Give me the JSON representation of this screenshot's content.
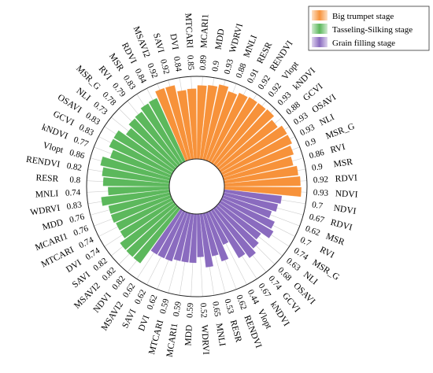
{
  "chart_data": {
    "type": "bar",
    "subtype": "radial-bar",
    "title": "",
    "xlabel": "",
    "ylabel": "",
    "ylim": [
      0,
      1
    ],
    "legend_position": "top-right",
    "series": [
      {
        "name": "Big trumpet stage",
        "color": "#f7923a",
        "categories": [
          "NDVI",
          "RDVI",
          "MSR",
          "RVI",
          "MSR_G",
          "NLI",
          "OSAVI",
          "GCVI",
          "kNDVI",
          "Vlopt",
          "RENDVI",
          "RESR",
          "MNLI",
          "WDRVI",
          "MDD",
          "MCARI1",
          "MTCARI",
          "DVI",
          "SAVI",
          "MSAVI2"
        ],
        "values": [
          0.93,
          0.92,
          0.9,
          0.86,
          0.9,
          0.93,
          0.93,
          0.88,
          0.93,
          0.92,
          0.92,
          0.91,
          0.88,
          0.93,
          0.9,
          0.89,
          0.85,
          0.84,
          0.92,
          0.92
        ],
        "value_labels": [
          "0.93",
          "0.92",
          "0.9",
          "0.86",
          "0.9",
          "0.93",
          "0.93",
          "0.88",
          "0.93",
          "0.92",
          "0.92",
          "0.91",
          "0.88",
          "0.93",
          "0.9",
          "0.89",
          "0.85",
          "0.84",
          "0.92",
          "0.92"
        ]
      },
      {
        "name": "Tasseling-Silking stage",
        "color": "#5cb85c",
        "categories": [
          "RDVI",
          "MSR",
          "RVI",
          "MSR_G",
          "NLI",
          "OSAVI",
          "GCVI",
          "kNDVI",
          "Vlopt",
          "RENDVI",
          "RESR",
          "MNLI",
          "WDRVI",
          "MDD",
          "MCARI1",
          "MTCARI",
          "DVI",
          "SAVI",
          "MSAVI2",
          "NDVI"
        ],
        "values": [
          0.84,
          0.83,
          0.79,
          0.78,
          0.73,
          0.83,
          0.83,
          0.77,
          0.86,
          0.82,
          0.8,
          0.74,
          0.83,
          0.76,
          0.76,
          0.74,
          0.74,
          0.82,
          0.82,
          0.82
        ],
        "value_labels": [
          "0.84",
          "0.83",
          "0.79",
          "0.78",
          "0.73",
          "0.83",
          "0.83",
          "0.77",
          "0.86",
          "0.82",
          "0.8",
          "0.74",
          "0.83",
          "0.76",
          "0.76",
          "0.74",
          "0.74",
          "0.82",
          "0.82",
          "0.82"
        ]
      },
      {
        "name": "Grain filling stage",
        "color": "#8a6bbf",
        "categories": [
          "MSAVI2",
          "SAVI",
          "DVI",
          "MTCARI",
          "MCARI1",
          "MDD",
          "WDRVI",
          "MNLI",
          "RESR",
          "RENDVI",
          "Vlopt",
          "kNDVI",
          "GCVI",
          "OSAVI",
          "NLI",
          "MSR_G",
          "RVI",
          "MSR",
          "RDVI",
          "NDVI"
        ],
        "values": [
          0.62,
          0.62,
          0.62,
          0.59,
          0.59,
          0.59,
          0.52,
          0.65,
          0.53,
          0.62,
          0.44,
          0.67,
          0.74,
          0.68,
          0.63,
          0.74,
          0.7,
          0.62,
          0.67,
          0.7
        ],
        "value_labels": [
          "0.62",
          "0.62",
          "0.62",
          "0.59",
          "0.59",
          "0.59",
          "0.52",
          "0.65",
          "0.53",
          "0.62",
          "0.44",
          "0.67",
          "0.74",
          "0.68",
          "0.63",
          "0.74",
          "0.7",
          "0.62",
          "0.67",
          "0.7"
        ]
      }
    ]
  }
}
